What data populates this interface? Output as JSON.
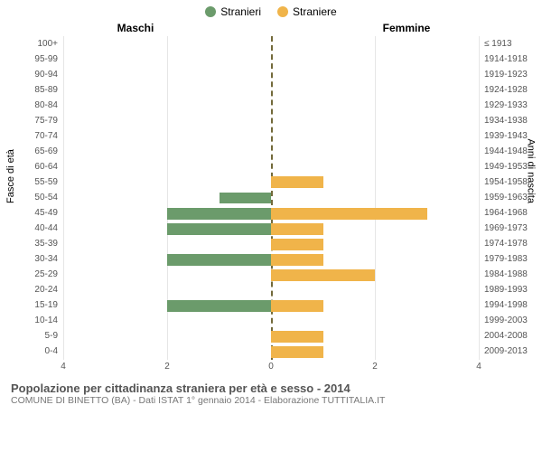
{
  "chart": {
    "type": "population-pyramid",
    "background_color": "#ffffff",
    "grid_color": "#e6e6e6",
    "center_line_color": "#736a3a",
    "legend": [
      {
        "label": "Stranieri",
        "color": "#6b9b6b"
      },
      {
        "label": "Straniere",
        "color": "#f0b44a"
      }
    ],
    "header_left": "Maschi",
    "header_right": "Femmine",
    "yaxis_left_label": "Fasce di età",
    "yaxis_right_label": "Anni di nascita",
    "xlim": 4,
    "xticks": [
      4,
      2,
      0,
      2,
      4
    ],
    "age_groups": [
      "100+",
      "95-99",
      "90-94",
      "85-89",
      "80-84",
      "75-79",
      "70-74",
      "65-69",
      "60-64",
      "55-59",
      "50-54",
      "45-49",
      "40-44",
      "35-39",
      "30-34",
      "25-29",
      "20-24",
      "15-19",
      "10-14",
      "5-9",
      "0-4"
    ],
    "birth_years": [
      "≤ 1913",
      "1914-1918",
      "1919-1923",
      "1924-1928",
      "1929-1933",
      "1934-1938",
      "1939-1943",
      "1944-1948",
      "1949-1953",
      "1954-1958",
      "1959-1963",
      "1964-1968",
      "1969-1973",
      "1974-1978",
      "1979-1983",
      "1984-1988",
      "1989-1993",
      "1994-1998",
      "1999-2003",
      "2004-2008",
      "2009-2013"
    ],
    "male_values": [
      0,
      0,
      0,
      0,
      0,
      0,
      0,
      0,
      0,
      0,
      1,
      2,
      2,
      0,
      2,
      0,
      0,
      2,
      0,
      0,
      0
    ],
    "female_values": [
      0,
      0,
      0,
      0,
      0,
      0,
      0,
      0,
      0,
      1,
      0,
      3,
      1,
      1,
      1,
      2,
      0,
      1,
      0,
      1,
      1
    ],
    "male_color": "#6b9b6b",
    "female_color": "#f0b44a",
    "tick_fontsize": 10,
    "label_fontsize": 11
  },
  "footer": {
    "title": "Popolazione per cittadinanza straniera per età e sesso - 2014",
    "subtitle": "COMUNE DI BINETTO (BA) - Dati ISTAT 1° gennaio 2014 - Elaborazione TUTTITALIA.IT"
  }
}
